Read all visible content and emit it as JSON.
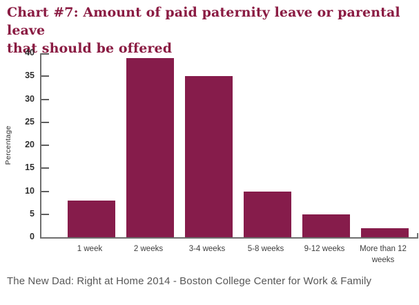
{
  "header": {
    "title_lines": [
      "Chart #7: Amount of paid paternity leave or parental leave",
      "that should be offered"
    ]
  },
  "footer": {
    "source": "The New Dad: Right at Home 2014 - Boston College Center for Work & Family"
  },
  "chart_data": {
    "type": "bar",
    "title": "Chart #7: Amount of paid paternity leave or parental leave that should be offered",
    "categories": [
      "1 week",
      "2 weeks",
      "3-4 weeks",
      "5-8 weeks",
      "9-12 weeks",
      "More than 12 weeks"
    ],
    "values": [
      8,
      39,
      35,
      10,
      5,
      2
    ],
    "xlabel": "",
    "ylabel": "Percentage",
    "ylim": [
      0,
      40
    ],
    "yticks": [
      0,
      5,
      10,
      15,
      20,
      25,
      30,
      35,
      40
    ],
    "grid": false,
    "legend": "none",
    "bar_color": "#861c4b",
    "axis_color": "#6e6e6e",
    "title_color": "#8a1b42",
    "source_color": "#575757"
  }
}
